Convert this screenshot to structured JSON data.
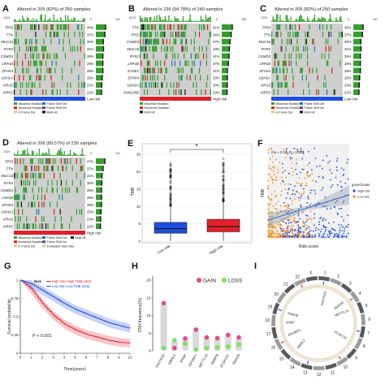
{
  "panels": {
    "A": {
      "letter": "A",
      "title": "Altered in 205 (82%) of 250 samples",
      "ymax": "1324",
      "right_max": "101",
      "right_zero": "0",
      "genes": [
        "TP53",
        "TTN",
        "MUC16",
        "RYR2",
        "CSMD3",
        "LRP1B",
        "ZFHX4",
        "USH2A",
        "KRAS",
        "XIRP2"
      ],
      "pcts": [
        "40%",
        "37%",
        "30%",
        "31%",
        "28%",
        "28%",
        "28%",
        "25%",
        "23%",
        "22%"
      ],
      "legend": [
        "Missense Mutation",
        "Nonsense Mutation",
        "In Frame Del",
        "Frame Shift Del",
        "Frame Shift Ins",
        "Multi Hit"
      ],
      "risk_label": "Low risk",
      "risk_color": "#1f4fe0"
    },
    "B": {
      "letter": "B",
      "title": "Altered in 236 (94.78%) of 249 samples",
      "ymax": "3213",
      "right_max": "158",
      "right_zero": "0",
      "genes": [
        "TTN",
        "TP53",
        "CSMD3",
        "MUC16",
        "RYR2",
        "LRP1B",
        "SYNE1",
        "ZFHX4",
        "USH2A",
        "FAM135B"
      ],
      "pcts": [
        "61%",
        "54%",
        "47%",
        "43%",
        "41%",
        "37%",
        "31%",
        "30%",
        "30%",
        "29%"
      ],
      "legend": [
        "Missense Mutation",
        "Nonsense Mutation",
        "Multi Hit"
      ],
      "risk_label": "High risk",
      "risk_color": "#e0202a"
    },
    "C": {
      "letter": "C",
      "title": "Altered in 205 (82%) of 250 samples",
      "ymax": "1324",
      "right_max": "101",
      "right_zero": "0",
      "genes": [
        "TP53",
        "TTN",
        "MUC16",
        "RYR2",
        "CSMD3",
        "LRP1B",
        "ZFHX4",
        "USH2A",
        "KRAS",
        "XIRP2"
      ],
      "pcts": [
        "40%",
        "37%",
        "30%",
        "31%",
        "28%",
        "28%",
        "28%",
        "25%",
        "23%",
        "22%"
      ],
      "legend": [
        "Missense Mutation",
        "Nonsense Mutation",
        "In Frame Del",
        "Frame Shift Del",
        "Frame Shift Ins",
        "Multi Hit"
      ],
      "risk_label": "Low risk",
      "risk_color": "#1f4fe0"
    },
    "D": {
      "letter": "D",
      "title": "Altered in 206 (89.57%) of 230 samples",
      "ymax": "1324",
      "right_max": "101",
      "right_zero": "0",
      "genes": [
        "TP53",
        "TTN",
        "MUC16",
        "RYR2",
        "CSMD3",
        "LRP1B",
        "ZFHX4",
        "USH2A",
        "KRAS",
        "XIRP2"
      ],
      "pcts": [
        "47%",
        "37%",
        "31%",
        "30%",
        "28%",
        "28%",
        "28%",
        "25%",
        "23%",
        "22%"
      ],
      "legend": [
        "Missense Mutation",
        "Nonsense Mutation",
        "In Frame Del",
        "Frame Shift Del",
        "Frame Shift Ins",
        "Translation Start Site",
        "Multi Hit"
      ],
      "risk_label": "High risk",
      "risk_color": "#e0202a"
    },
    "E": {
      "letter": "E",
      "sig": "*",
      "ylabel": "TMB"
    },
    "F": {
      "letter": "F",
      "stat": "rho = 0.12, P = 0.004",
      "ylabel": "TMB",
      "xlabel": "Risk score",
      "legend_title": "geneCluster",
      "legend_items": [
        "High risk",
        "Low risk"
      ]
    },
    "G": {
      "letter": "G",
      "ylabel": "Survival probability",
      "xlabel": "Time(years)",
      "pval": "P < 0.001",
      "risk_word": "Risk"
    },
    "H": {
      "letter": "H",
      "ylabel": "CNV.frequency(%)",
      "legend_gain": "GAIN",
      "legend_loss": "LOSS"
    },
    "I": {
      "letter": "I"
    }
  },
  "colors": {
    "missense": "#33a02c",
    "nonsense": "#e31a1c",
    "frameshift": "#1f78b4",
    "multihit": "#111111",
    "highrisk": "#e0202a",
    "lowrisk": "#1f4fe0",
    "gain": "#e8458b",
    "loss": "#7fe05a"
  },
  "chart_data": [
    {
      "type": "box",
      "panel": "E",
      "ylabel": "TMB",
      "categories": [
        "Low risk",
        "High risk"
      ],
      "ylim": [
        0,
        25
      ],
      "yticks": [
        0,
        5,
        10,
        15,
        20,
        25
      ],
      "boxes": [
        {
          "name": "Low risk",
          "q1": 2.3,
          "median": 3.6,
          "q3": 5.4,
          "whisker_low": 0.1,
          "whisker_high": 10.2,
          "color": "#1f4fe0"
        },
        {
          "name": "High risk",
          "q1": 2.7,
          "median": 4.2,
          "q3": 6.3,
          "whisker_low": 0.1,
          "whisker_high": 11.5,
          "color": "#e0202a"
        }
      ]
    },
    {
      "type": "scatter",
      "panel": "F",
      "xlabel": "Risk score",
      "ylabel": "TMB",
      "stat": "rho = 0.12, P = 0.004",
      "series": [
        {
          "name": "High risk",
          "color": "#1f4fe0"
        },
        {
          "name": "Low risk",
          "color": "#f28e1c"
        }
      ]
    },
    {
      "type": "line",
      "panel": "G",
      "xlabel": "Time(years)",
      "ylabel": "Survival probability",
      "xlim": [
        0,
        10
      ],
      "ylim": [
        0,
        1
      ],
      "xticks": [
        0,
        1,
        2,
        3,
        4,
        5,
        6,
        7,
        8,
        9,
        10
      ],
      "yticks": [
        0,
        0.25,
        0.5,
        0.75,
        1
      ],
      "series": [
        {
          "name": "High risk+High TMB (250)",
          "color": "#e0202a",
          "x": [
            0,
            1,
            2,
            3,
            4,
            5,
            6,
            7,
            8,
            9,
            10
          ],
          "y": [
            1,
            0.88,
            0.68,
            0.52,
            0.4,
            0.32,
            0.26,
            0.22,
            0.18,
            0.15,
            0.14
          ]
        },
        {
          "name": "Low risk+Low TMB (248)",
          "color": "#1f4fe0",
          "x": [
            0,
            1,
            2,
            3,
            4,
            5,
            6,
            7,
            8,
            9,
            10
          ],
          "y": [
            1,
            0.95,
            0.86,
            0.77,
            0.68,
            0.6,
            0.54,
            0.48,
            0.42,
            0.38,
            0.34
          ]
        }
      ],
      "pval": "P < 0.001"
    },
    {
      "type": "dot",
      "panel": "H",
      "ylabel": "CNV.frequency(%)",
      "ylim": [
        0,
        20
      ],
      "yticks": [
        0,
        5,
        10,
        15,
        20
      ],
      "categories": [
        "FASTKD3",
        "MBNL2",
        "RYBP",
        "IGF2BP1",
        "METTL16",
        "SNRPB",
        "ZC3H13C",
        "SMAD6"
      ],
      "series": [
        {
          "name": "GAIN",
          "color": "#e8458b",
          "values": [
            13.5,
            0.8,
            3.5,
            6.0,
            3.8,
            3.6,
            4.5,
            3.8
          ]
        },
        {
          "name": "LOSS",
          "color": "#7fe05a",
          "values": [
            0.8,
            3.0,
            2.0,
            0.3,
            0.8,
            1.0,
            1.2,
            1.8
          ]
        }
      ]
    }
  ],
  "circos": {
    "chromosomes": [
      "1",
      "2",
      "3",
      "4",
      "5",
      "6",
      "7",
      "8",
      "9",
      "10",
      "11",
      "12",
      "13",
      "14",
      "15",
      "16",
      "17",
      "18",
      "19",
      "20",
      "21",
      "22",
      "X"
    ],
    "genes": [
      "FASTKD3",
      "IGF2BP1",
      "MBNL2",
      "ZC3H13C",
      "METTL16",
      "SNRPB",
      "RYBP",
      "SMAD6"
    ]
  }
}
